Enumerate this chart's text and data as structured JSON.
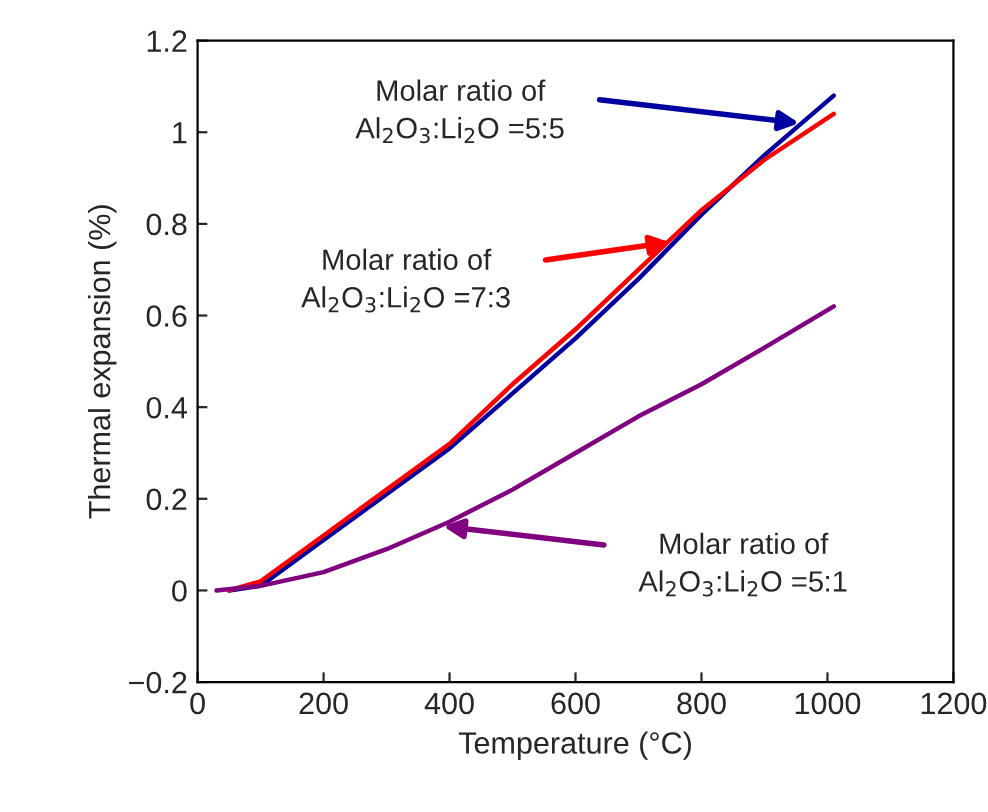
{
  "chart_data": {
    "type": "line",
    "xlabel": "Temperature (°C)",
    "ylabel": "Thermal expansion (%)",
    "xlim": [
      0,
      1200
    ],
    "xticks": [
      0,
      200,
      400,
      600,
      800,
      1000,
      1200
    ],
    "ylim": [
      -0.2,
      1.2
    ],
    "yticks": [
      -0.2,
      0,
      0.2,
      0.4,
      0.6,
      0.8,
      1,
      1.2
    ],
    "grid": false,
    "legend": false,
    "marker": "none",
    "line_style": "solid",
    "series": [
      {
        "color": "#0000a0",
        "x": [
          50,
          100,
          200,
          300,
          400,
          500,
          600,
          700,
          800,
          900,
          1010
        ],
        "values": [
          0,
          0.01,
          0.11,
          0.21,
          0.31,
          0.43,
          0.55,
          0.68,
          0.82,
          0.95,
          1.08
        ]
      },
      {
        "color": "#ff0000",
        "x": [
          50,
          100,
          200,
          300,
          400,
          500,
          600,
          700,
          800,
          900,
          1010
        ],
        "values": [
          0,
          0.02,
          0.12,
          0.22,
          0.32,
          0.45,
          0.57,
          0.7,
          0.83,
          0.94,
          1.04
        ]
      },
      {
        "color": "#800080",
        "x": [
          30,
          100,
          200,
          300,
          400,
          500,
          600,
          700,
          800,
          900,
          1010
        ],
        "values": [
          0,
          0.01,
          0.04,
          0.09,
          0.15,
          0.22,
          0.3,
          0.38,
          0.45,
          0.53,
          0.62
        ]
      }
    ],
    "annotations": [
      {
        "text": "Molar ratio of\nAl$_{2}$O$_{3}$:Li$_{2}$O =5:5",
        "x": 955,
        "y": 1.02
      },
      {
        "text": "Molar ratio of\nAl$_{2}$O$_{3}$:Li$_{2}$O =7:3",
        "x": 750,
        "y": 0.76
      },
      {
        "text": "Molar ratio of\nAl$_{2}$O$_{3}$:Li$_{2}$O =5:1",
        "x": 390,
        "y": 0.14
      }
    ]
  }
}
